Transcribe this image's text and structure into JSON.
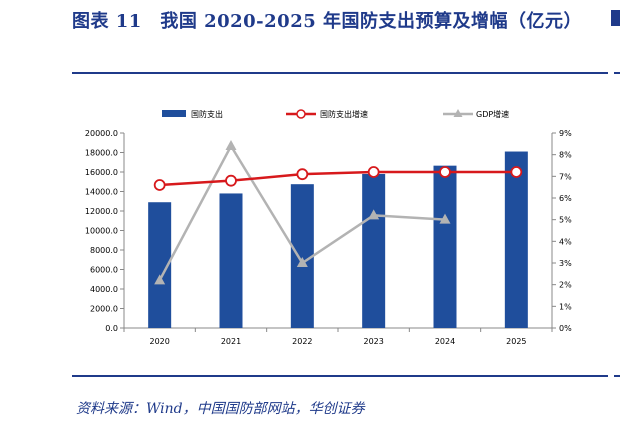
{
  "header": {
    "title": "图表 11　我国 2020-2025 年国防支出预算及增幅（亿元）"
  },
  "footer": {
    "source": "资料来源：Wind，中国国防部网站，华创证券"
  },
  "colors": {
    "bar": "#1f4e9c",
    "defense_growth": "#d7191c",
    "gdp_growth": "#b3b3b3",
    "title": "#1f3a8a"
  },
  "chart_data": {
    "type": "bar",
    "categories": [
      "2020",
      "2021",
      "2022",
      "2023",
      "2024",
      "2025"
    ],
    "series": [
      {
        "name": "国防支出",
        "type": "bar",
        "axis": "left",
        "values": [
          12900,
          13800,
          14750,
          15800,
          16650,
          18100
        ]
      },
      {
        "name": "国防支出增速",
        "type": "line",
        "axis": "right",
        "values": [
          6.6,
          6.8,
          7.1,
          7.2,
          7.2,
          7.2
        ]
      },
      {
        "name": "GDP增速",
        "type": "line",
        "axis": "right",
        "values": [
          2.2,
          8.4,
          3.0,
          5.2,
          5.0,
          null
        ]
      }
    ],
    "left_axis": {
      "ylim": [
        0,
        20000
      ],
      "ticks": [
        "0.0",
        "2000.0",
        "4000.0",
        "6000.0",
        "8000.0",
        "10000.0",
        "12000.0",
        "14000.0",
        "16000.0",
        "18000.0",
        "20000.0"
      ]
    },
    "right_axis": {
      "ylim": [
        0,
        9
      ],
      "ticks": [
        "0%",
        "1%",
        "2%",
        "3%",
        "4%",
        "5%",
        "6%",
        "7%",
        "8%",
        "9%"
      ]
    },
    "grid": false,
    "legend": "top"
  }
}
